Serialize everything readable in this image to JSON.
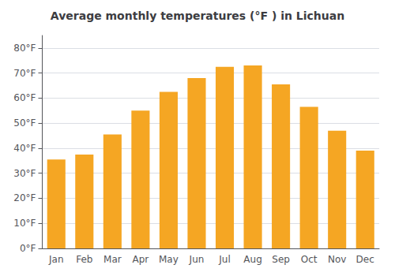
{
  "chart_data": {
    "type": "bar",
    "title": "Average monthly temperatures (°F ) in Lichuan",
    "categories": [
      "Jan",
      "Feb",
      "Mar",
      "Apr",
      "May",
      "Jun",
      "Jul",
      "Aug",
      "Sep",
      "Oct",
      "Nov",
      "Dec"
    ],
    "values": [
      35.5,
      37.5,
      45.5,
      55.0,
      62.5,
      68.0,
      72.5,
      73.0,
      65.5,
      56.5,
      47.0,
      39.0
    ],
    "color": "#F5A623",
    "ylim": [
      0,
      85
    ],
    "yticks": [
      {
        "value": 0,
        "label": "0°F"
      },
      {
        "value": 10,
        "label": "10°F"
      },
      {
        "value": 20,
        "label": "20°F"
      },
      {
        "value": 30,
        "label": "30°F"
      },
      {
        "value": 40,
        "label": "40°F"
      },
      {
        "value": 50,
        "label": "50°F"
      },
      {
        "value": 60,
        "label": "60°F"
      },
      {
        "value": 70,
        "label": "70°F"
      },
      {
        "value": 80,
        "label": "80°F"
      }
    ],
    "grid": true
  }
}
